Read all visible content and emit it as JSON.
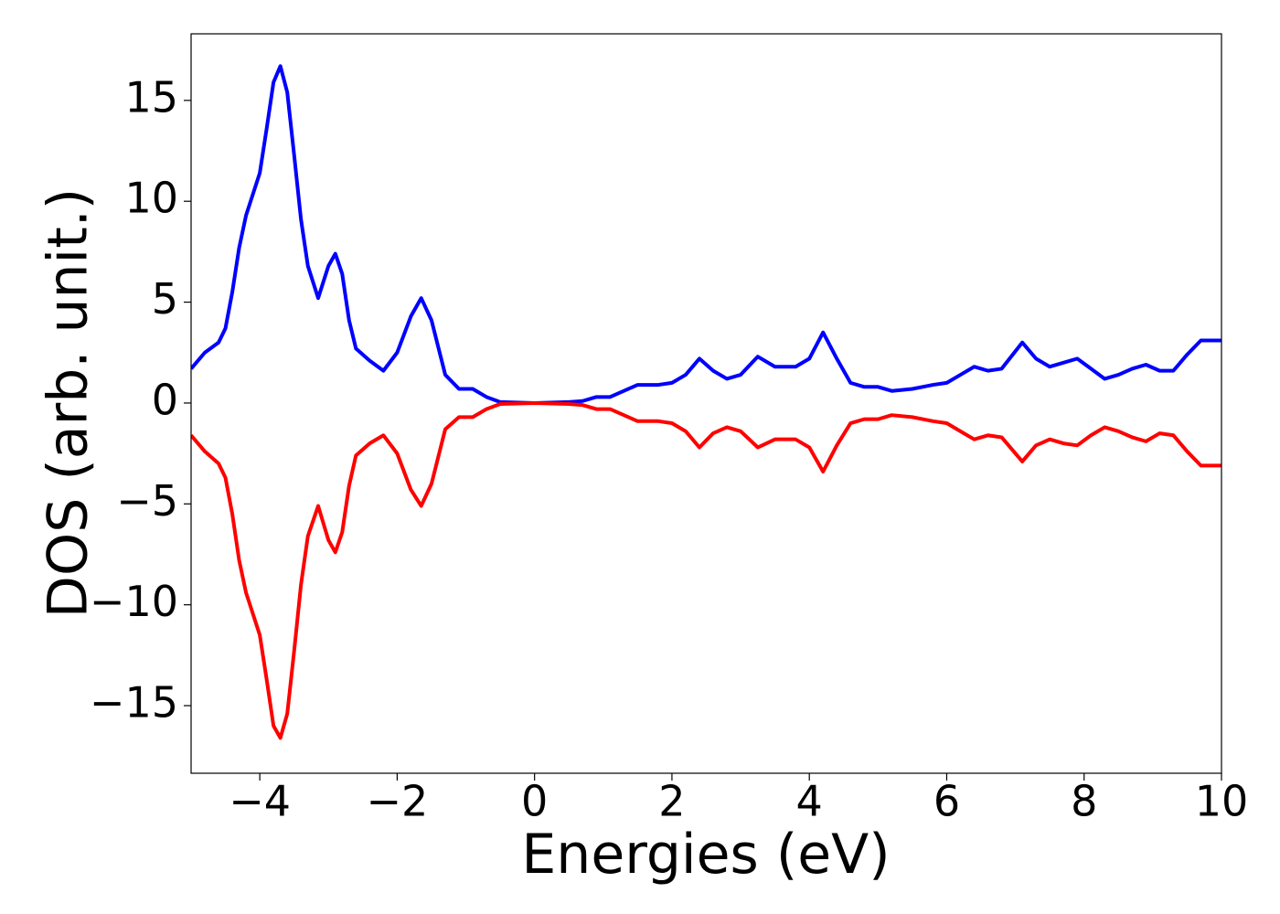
{
  "chart_data": {
    "type": "line",
    "xlabel": "Energies (eV)",
    "ylabel": "DOS (arb. unit.)",
    "x": [
      -5,
      -4.8,
      -4.6,
      -4.5,
      -4.4,
      -4.3,
      -4.2,
      -4.0,
      -3.9,
      -3.8,
      -3.7,
      -3.6,
      -3.5,
      -3.4,
      -3.3,
      -3.15,
      -3.0,
      -2.9,
      -2.8,
      -2.7,
      -2.6,
      -2.4,
      -2.2,
      -2.0,
      -1.8,
      -1.65,
      -1.5,
      -1.3,
      -1.1,
      -0.9,
      -0.7,
      -0.5,
      0,
      0.5,
      0.7,
      0.9,
      1.1,
      1.3,
      1.5,
      1.8,
      2.0,
      2.2,
      2.4,
      2.6,
      2.8,
      3.0,
      3.25,
      3.5,
      3.8,
      4.0,
      4.2,
      4.4,
      4.6,
      4.8,
      5.0,
      5.2,
      5.5,
      5.8,
      6.0,
      6.2,
      6.4,
      6.6,
      6.8,
      7.1,
      7.3,
      7.5,
      7.7,
      7.9,
      8.1,
      8.3,
      8.5,
      8.7,
      8.9,
      9.1,
      9.3,
      9.5,
      9.7,
      9.9,
      10
    ],
    "series": [
      {
        "color": "#0000ff",
        "values": [
          1.7,
          2.5,
          3.0,
          3.7,
          5.5,
          7.7,
          9.3,
          11.4,
          13.6,
          15.9,
          16.7,
          15.4,
          12.3,
          9.1,
          6.8,
          5.2,
          6.8,
          7.4,
          6.4,
          4.1,
          2.7,
          2.1,
          1.6,
          2.5,
          4.3,
          5.2,
          4.1,
          1.4,
          0.7,
          0.7,
          0.3,
          0.05,
          0,
          0.05,
          0.1,
          0.3,
          0.3,
          0.6,
          0.9,
          0.9,
          1.0,
          1.4,
          2.2,
          1.6,
          1.2,
          1.4,
          2.3,
          1.8,
          1.8,
          2.2,
          3.5,
          2.2,
          1.0,
          0.8,
          0.8,
          0.6,
          0.7,
          0.9,
          1.0,
          1.4,
          1.8,
          1.6,
          1.7,
          3.0,
          2.2,
          1.8,
          2.0,
          2.2,
          1.7,
          1.2,
          1.4,
          1.7,
          1.9,
          1.6,
          1.6,
          2.4,
          3.1,
          3.1,
          3.1
        ]
      },
      {
        "color": "#ff0000",
        "values": [
          -1.6,
          -2.4,
          -3.0,
          -3.7,
          -5.5,
          -7.8,
          -9.4,
          -11.5,
          -13.7,
          -16.0,
          -16.6,
          -15.4,
          -12.3,
          -9.0,
          -6.6,
          -5.1,
          -6.8,
          -7.4,
          -6.4,
          -4.1,
          -2.6,
          -2.0,
          -1.6,
          -2.5,
          -4.3,
          -5.1,
          -4.0,
          -1.3,
          -0.7,
          -0.7,
          -0.3,
          -0.05,
          0,
          -0.05,
          -0.1,
          -0.3,
          -0.3,
          -0.6,
          -0.9,
          -0.9,
          -1.0,
          -1.4,
          -2.2,
          -1.5,
          -1.2,
          -1.4,
          -2.2,
          -1.8,
          -1.8,
          -2.2,
          -3.4,
          -2.1,
          -1.0,
          -0.8,
          -0.8,
          -0.6,
          -0.7,
          -0.9,
          -1.0,
          -1.4,
          -1.8,
          -1.6,
          -1.7,
          -2.9,
          -2.1,
          -1.8,
          -2.0,
          -2.1,
          -1.6,
          -1.2,
          -1.4,
          -1.7,
          -1.9,
          -1.5,
          -1.6,
          -2.4,
          -3.1,
          -3.1,
          -3.1
        ]
      }
    ],
    "xlim": [
      -5,
      10
    ],
    "ylim": [
      -18.35,
      18.3
    ],
    "xticks": [
      {
        "value": -4,
        "label": "−4"
      },
      {
        "value": -2,
        "label": "−2"
      },
      0,
      2,
      4,
      6,
      8,
      10
    ],
    "yticks": [
      {
        "value": -15,
        "label": "−15"
      },
      {
        "value": -10,
        "label": "−10"
      },
      {
        "value": -5,
        "label": "−5"
      },
      0,
      5,
      10,
      15
    ],
    "line_width": 4
  }
}
